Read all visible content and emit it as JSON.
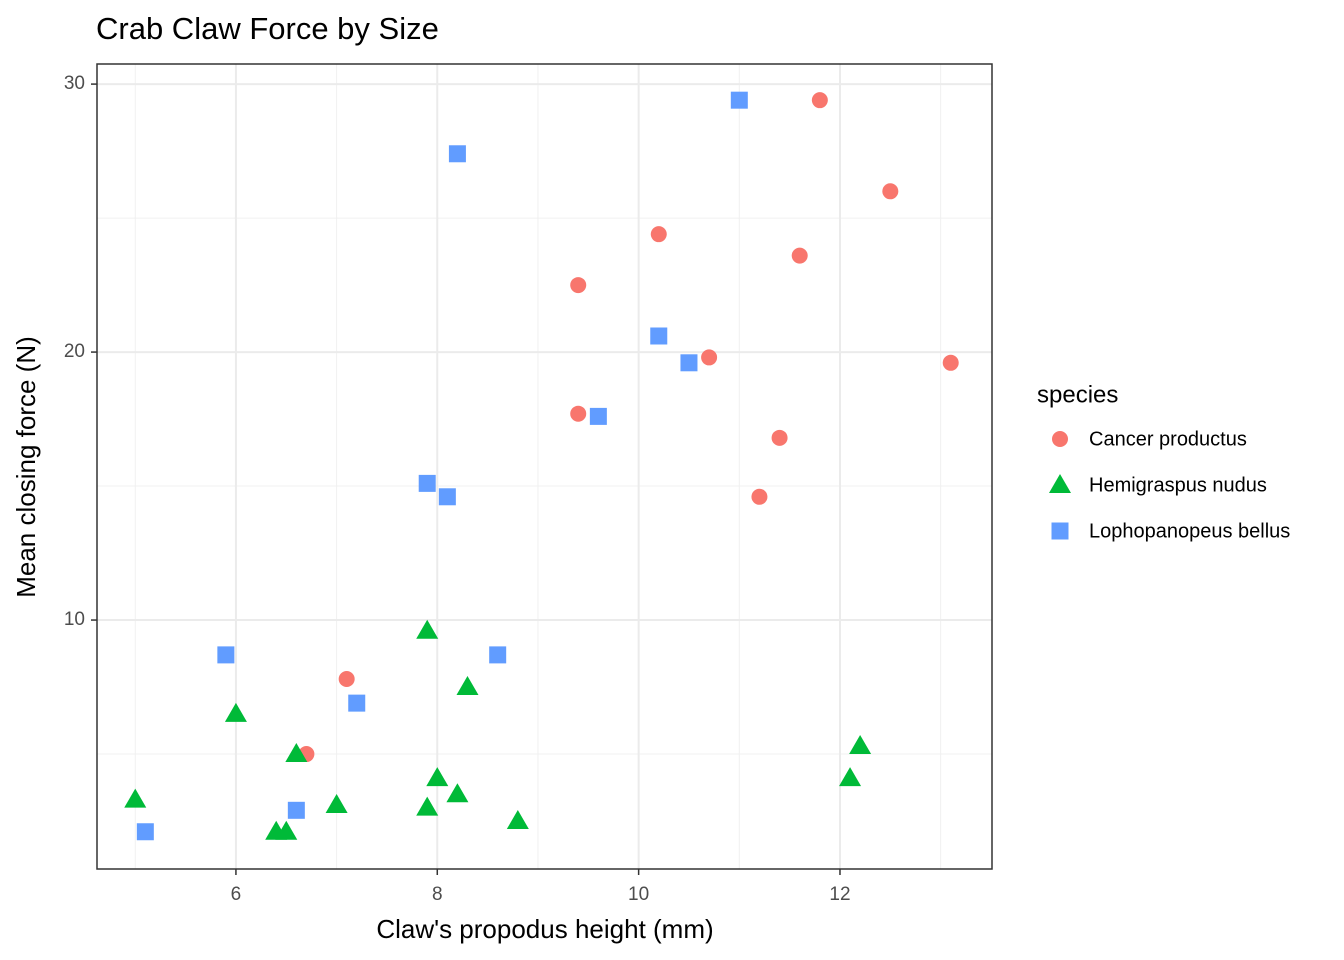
{
  "chart_data": {
    "type": "scatter",
    "title": "Crab Claw Force by Size",
    "x_label": "Claw's propodus height (mm)",
    "y_label": "Mean closing force (N)",
    "legend_title": "species",
    "legend_position": "right",
    "xlim": [
      4.62,
      13.51
    ],
    "ylim": [
      0.71,
      30.75
    ],
    "xticks": [
      6,
      8,
      10,
      12
    ],
    "yticks": [
      10,
      20,
      30
    ],
    "grid": true,
    "minor_grid": true,
    "series": [
      {
        "name": "Cancer productus",
        "color": "#f8766d",
        "shape": "circle",
        "x": [
          11.8,
          12.5,
          10.2,
          11.6,
          9.4,
          10.7,
          13.1,
          9.4,
          11.4,
          11.2,
          7.1,
          6.7
        ],
        "values": [
          29.4,
          26.0,
          24.4,
          23.6,
          22.5,
          19.8,
          19.6,
          17.7,
          16.8,
          14.6,
          7.8,
          5.0
        ]
      },
      {
        "name": "Hemigraspus nudus",
        "color": "#00ba38",
        "shape": "triangle",
        "x": [
          5.0,
          6.0,
          6.6,
          6.4,
          6.5,
          7.0,
          7.9,
          7.9,
          8.0,
          8.2,
          8.3,
          8.8,
          12.1,
          12.2
        ],
        "values": [
          3.3,
          6.5,
          5.0,
          2.1,
          2.1,
          3.1,
          9.6,
          3.0,
          4.1,
          3.5,
          7.5,
          2.5,
          4.1,
          5.3
        ]
      },
      {
        "name": "Lophopanopeus bellus",
        "color": "#619cff",
        "shape": "square",
        "x": [
          11.0,
          8.2,
          10.2,
          10.5,
          9.6,
          7.9,
          8.1,
          5.9,
          8.6,
          7.2,
          6.6,
          5.1
        ],
        "values": [
          29.4,
          27.4,
          20.6,
          19.6,
          17.6,
          15.1,
          14.6,
          8.7,
          8.7,
          6.9,
          2.9,
          2.1
        ]
      }
    ]
  }
}
